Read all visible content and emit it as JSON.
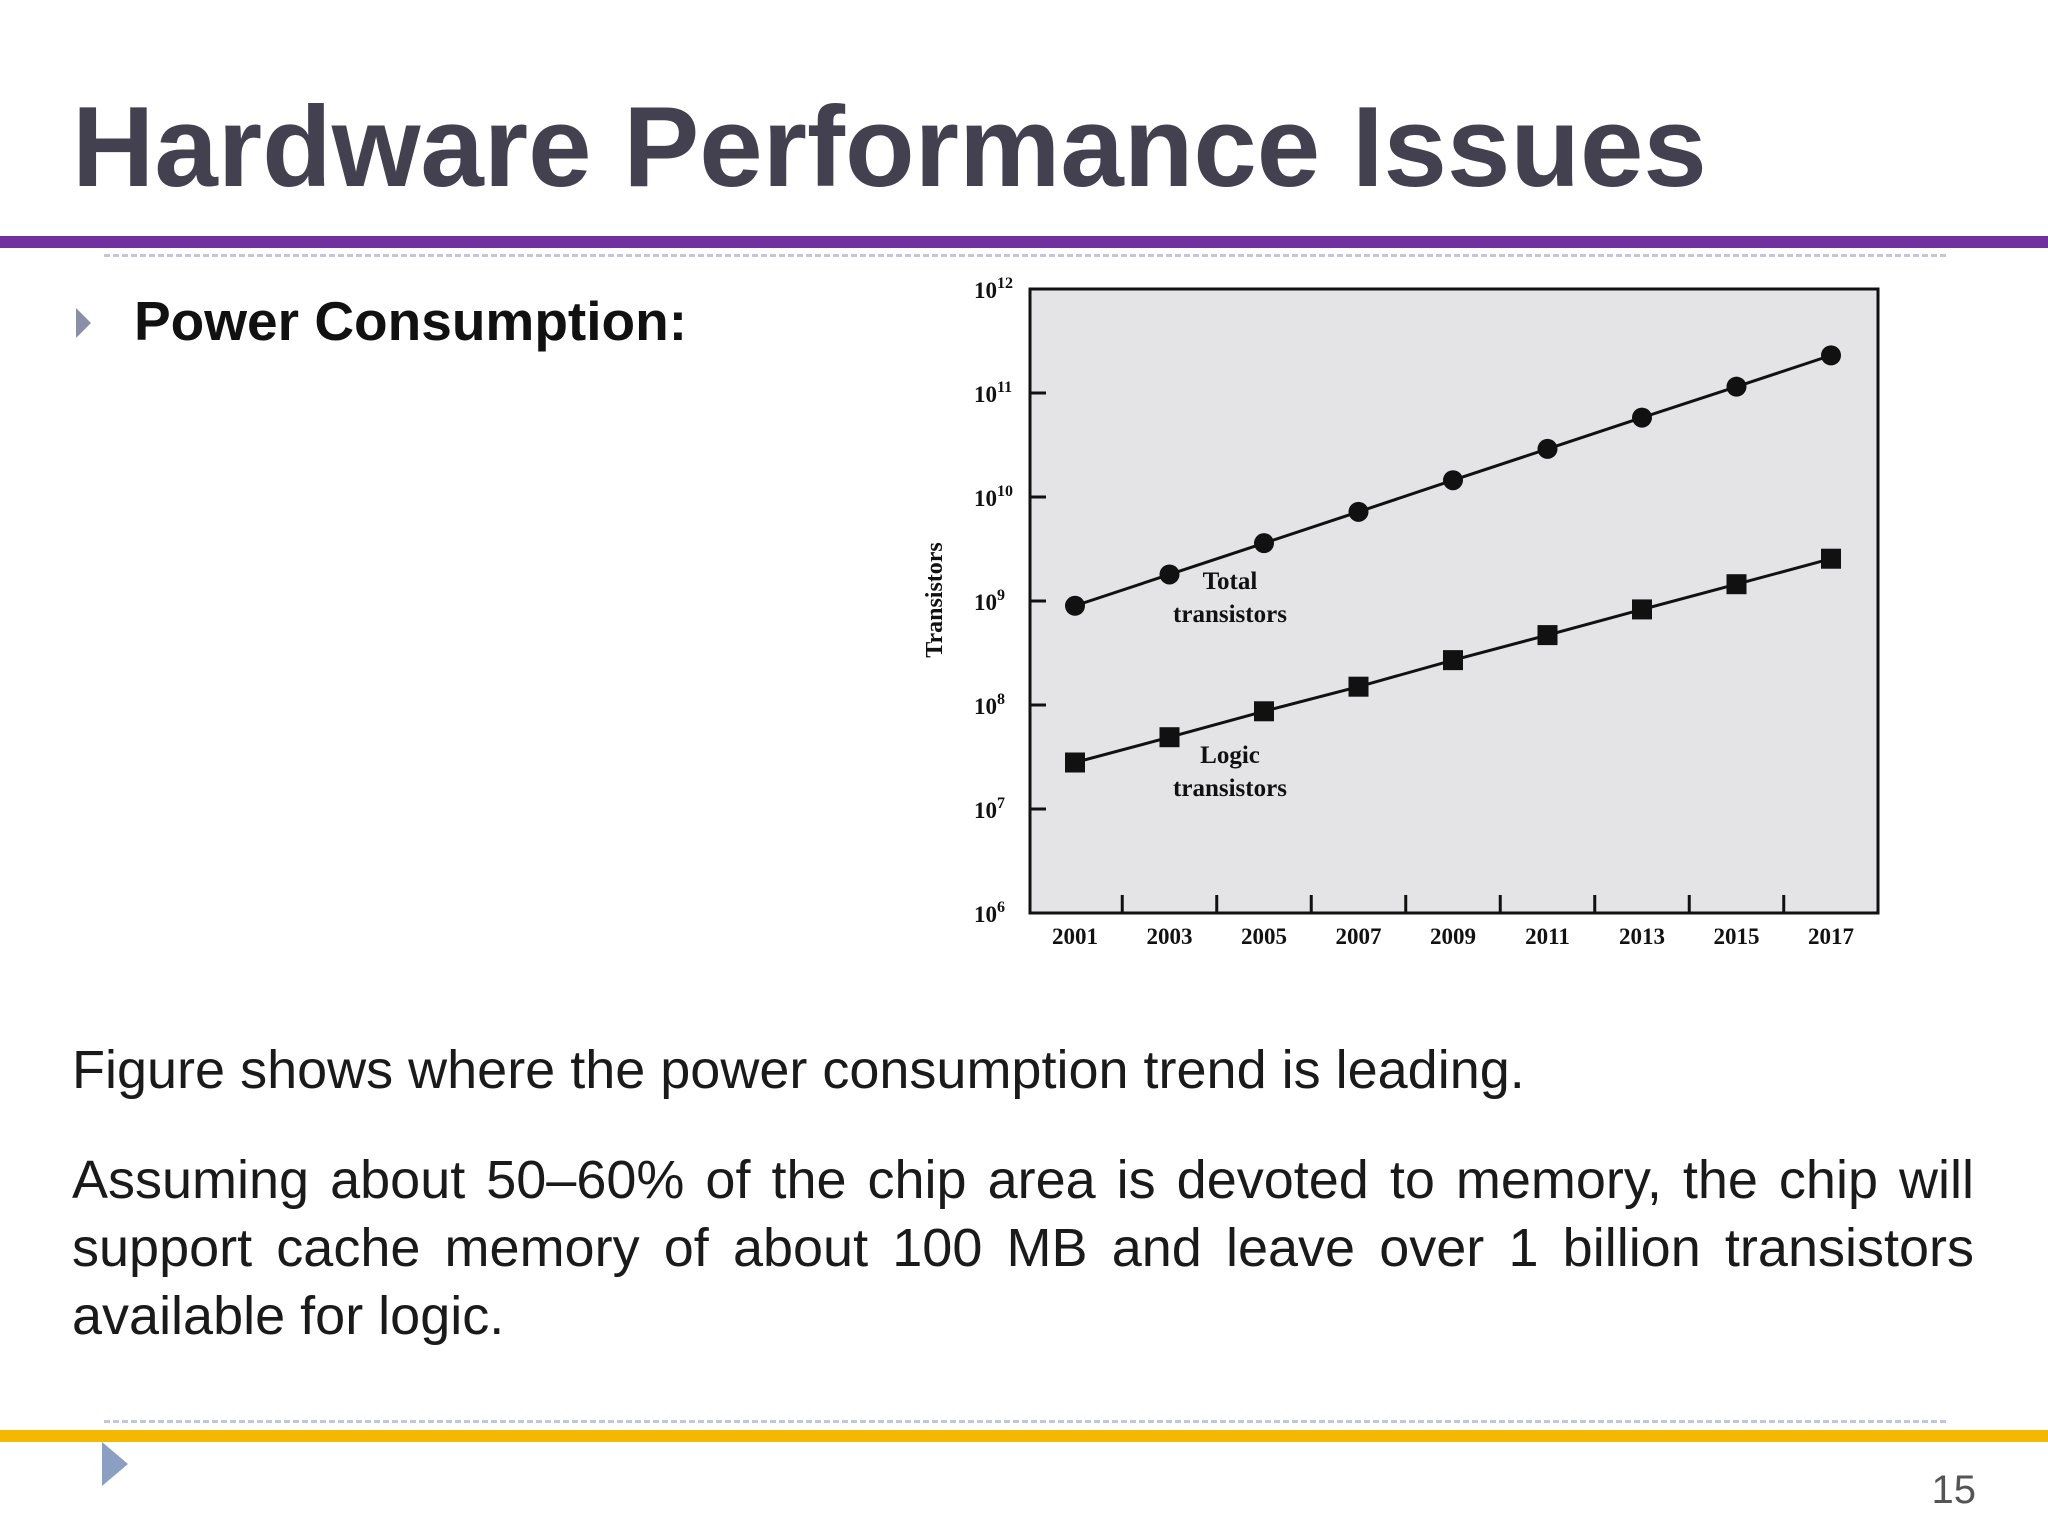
{
  "slide": {
    "title": "Hardware Performance Issues",
    "bullet": "Power Consumption:",
    "paragraph1": "Figure shows where the power consumption trend is leading.",
    "paragraph2": "Assuming about 50–60% of the chip area is devoted to memory, the chip will support cache memory of about 100 MB and leave over 1 billion transistors available for logic.",
    "page_number": "15"
  },
  "colors": {
    "title": "#43414f",
    "top_rule": "#7030a0",
    "bottom_rule": "#f5b800",
    "chart_background": "#e4e4e7"
  },
  "chart_data": {
    "type": "line",
    "title": "",
    "xlabel": "",
    "ylabel": "Transistors",
    "yscale": "log",
    "ylim": [
      1000000,
      1000000000000
    ],
    "ytick_labels": [
      {
        "base": "10",
        "exp": "12",
        "value": 1000000000000
      },
      {
        "base": "10",
        "exp": "11",
        "value": 100000000000
      },
      {
        "base": "10",
        "exp": "10",
        "value": 10000000000
      },
      {
        "base": "10",
        "exp": "9",
        "value": 1000000000
      },
      {
        "base": "10",
        "exp": "8",
        "value": 100000000
      },
      {
        "base": "10",
        "exp": "7",
        "value": 10000000
      },
      {
        "base": "10",
        "exp": "6",
        "value": 1000000
      }
    ],
    "x": [
      "2001",
      "2003",
      "2005",
      "2007",
      "2009",
      "2011",
      "2013",
      "2015",
      "2017"
    ],
    "grid": false,
    "series": [
      {
        "name": "Total transistors",
        "label_lines": [
          "Total",
          "transistors"
        ],
        "marker": "circle",
        "values": [
          900000000,
          1800000000,
          3600000000,
          7200000000,
          14500000000,
          29000000000,
          58000000000,
          115000000000,
          230000000000
        ]
      },
      {
        "name": "Logic transistors",
        "label_lines": [
          "Logic",
          "transistors"
        ],
        "marker": "square",
        "values": [
          28000000,
          49000000,
          87000000,
          150000000,
          270000000,
          470000000,
          830000000,
          1450000000,
          2550000000
        ]
      }
    ]
  }
}
